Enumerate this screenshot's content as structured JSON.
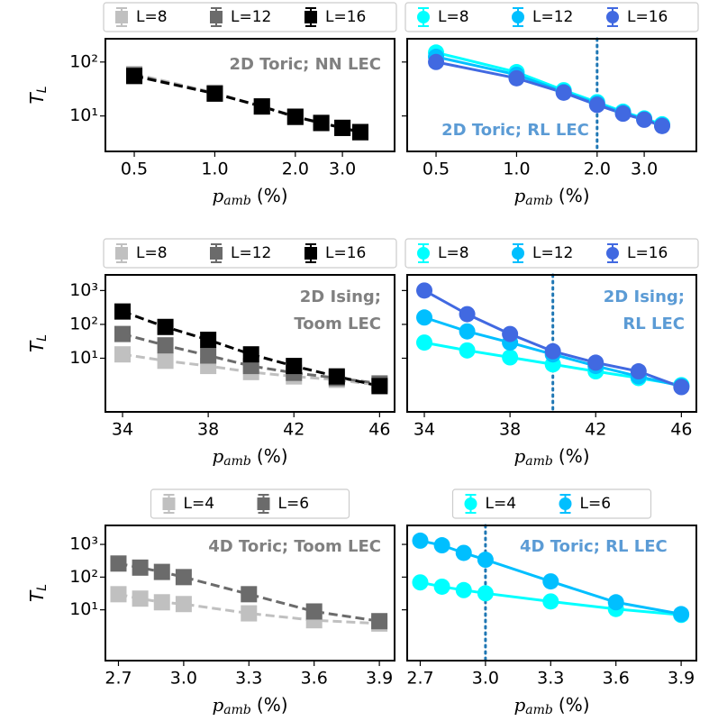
{
  "chart_data": [
    {
      "type": "line",
      "annotation": [
        "2D Toric; NN LEC"
      ],
      "annotation_color": "#808080",
      "x_label": {
        "symbol": "p",
        "subscript": "amb",
        "unit": "(%)"
      },
      "y_label": {
        "symbol": "T",
        "subscript": "L"
      },
      "x": [
        0.5,
        1,
        1.5,
        2,
        2.5,
        3,
        3.5
      ],
      "xscale": "log",
      "xlim": [
        0.39,
        4.7
      ],
      "xticks": [
        0.5,
        {
          "value": 1,
          "label": "1.0"
        },
        {
          "value": 2,
          "label": "2.0"
        },
        {
          "value": 3,
          "label": "3.0"
        }
      ],
      "yscale": "log",
      "ylim": [
        2.2,
        270
      ],
      "yticks": [
        {
          "value": 10,
          "label": "10¹"
        },
        {
          "value": 100,
          "label": "10²"
        }
      ],
      "marker": "square",
      "line_style": "dashed",
      "legend": "top",
      "series": [
        {
          "name": "L=8",
          "color": "#c0c0c0",
          "values": [
            60,
            27,
            15,
            9.8,
            7.5,
            6.1,
            5.1
          ]
        },
        {
          "name": "L=12",
          "color": "#6b6b6b",
          "values": [
            57,
            26,
            15,
            9.7,
            7.4,
            6,
            5
          ]
        },
        {
          "name": "L=16",
          "color": "#000000",
          "values": [
            55,
            26,
            15,
            9.6,
            7.4,
            6,
            5
          ]
        }
      ]
    },
    {
      "type": "line",
      "annotation": [
        "2D Toric; RL LEC"
      ],
      "annotation_color": "#5b9bd5",
      "x_label": {
        "symbol": "p",
        "subscript": "amb",
        "unit": "(%)"
      },
      "x": [
        0.5,
        1,
        1.5,
        2,
        2.5,
        3,
        3.5
      ],
      "xscale": "log",
      "xlim": [
        0.39,
        4.7
      ],
      "xticks": [
        0.5,
        {
          "value": 1,
          "label": "1.0"
        },
        {
          "value": 2,
          "label": "2.0"
        },
        {
          "value": 3,
          "label": "3.0"
        }
      ],
      "yscale": "log",
      "ylim": [
        2.2,
        270
      ],
      "yticks": [
        10,
        100
      ],
      "vline": 2,
      "vline_color": "#1f77b4",
      "marker": "circle",
      "line_style": "solid",
      "legend": "top",
      "series": [
        {
          "name": "L=8",
          "color": "#00ffff",
          "values": [
            150,
            65,
            30,
            18,
            12,
            9,
            7
          ]
        },
        {
          "name": "L=12",
          "color": "#00bfff",
          "values": [
            125,
            58,
            28,
            17,
            11.5,
            8.7,
            6.7
          ]
        },
        {
          "name": "L=16",
          "color": "#4169e1",
          "values": [
            100,
            50,
            27,
            16,
            11,
            8.5,
            6.5
          ]
        }
      ]
    },
    {
      "type": "line",
      "annotation": [
        "2D Ising;",
        "Toom LEC"
      ],
      "annotation_color": "#808080",
      "x_label": {
        "symbol": "p",
        "subscript": "amb",
        "unit": "(%)"
      },
      "y_label": {
        "symbol": "T",
        "subscript": "L"
      },
      "x": [
        34,
        36,
        38,
        40,
        42,
        44,
        46
      ],
      "xscale": "linear",
      "xlim": [
        33.2,
        46.7
      ],
      "xticks": [
        34,
        38,
        42,
        46
      ],
      "yscale": "log",
      "ylim": [
        0.26,
        2900
      ],
      "yticks": [
        {
          "value": 10,
          "label": "10¹"
        },
        {
          "value": 100,
          "label": "10²"
        },
        {
          "value": 1000,
          "label": "10³"
        }
      ],
      "marker": "square",
      "line_style": "dashed",
      "legend": "top",
      "series": [
        {
          "name": "L=8",
          "color": "#c0c0c0",
          "values": [
            13,
            8.4,
            5.9,
            3.9,
            2.9,
            2.3,
            1.6
          ]
        },
        {
          "name": "L=12",
          "color": "#6b6b6b",
          "values": [
            52,
            24,
            12,
            5.9,
            3.7,
            2.6,
            1.8
          ]
        },
        {
          "name": "L=16",
          "color": "#000000",
          "values": [
            240,
            84,
            35,
            13,
            5.9,
            2.9,
            1.5
          ]
        }
      ]
    },
    {
      "type": "line",
      "annotation": [
        "2D Ising;",
        "RL LEC"
      ],
      "annotation_color": "#5b9bd5",
      "x_label": {
        "symbol": "p",
        "subscript": "amb",
        "unit": "(%)"
      },
      "x": [
        34,
        36,
        38,
        40,
        42,
        44,
        46
      ],
      "xscale": "linear",
      "xlim": [
        33.2,
        46.7
      ],
      "xticks": [
        34,
        38,
        42,
        46
      ],
      "yscale": "log",
      "ylim": [
        0.26,
        2900
      ],
      "yticks": [
        10,
        100,
        1000
      ],
      "vline": 40,
      "vline_color": "#1f77b4",
      "marker": "circle",
      "line_style": "solid",
      "legend": "top",
      "series": [
        {
          "name": "L=8",
          "color": "#00ffff",
          "values": [
            29,
            17,
            10.6,
            6.6,
            4.1,
            2.6,
            1.6
          ]
        },
        {
          "name": "L=12",
          "color": "#00bfff",
          "values": [
            160,
            62,
            29,
            13,
            5.9,
            2.9,
            1.5
          ]
        },
        {
          "name": "L=16",
          "color": "#4169e1",
          "values": [
            1000,
            200,
            52,
            16,
            7.4,
            4.1,
            1.4
          ]
        }
      ]
    },
    {
      "type": "line",
      "annotation": [
        "4D Toric; Toom LEC"
      ],
      "annotation_color": "#808080",
      "x_label": {
        "symbol": "p",
        "subscript": "amb",
        "unit": "(%)"
      },
      "y_label": {
        "symbol": "T",
        "subscript": "L"
      },
      "x": [
        2.7,
        2.8,
        2.9,
        3,
        3.3,
        3.6,
        3.9
      ],
      "xscale": "linear",
      "xlim": [
        2.64,
        3.97
      ],
      "xticks": [
        2.7,
        {
          "value": 3,
          "label": "3.0"
        },
        3.3,
        3.6,
        3.9
      ],
      "yscale": "log",
      "ylim": [
        0.28,
        3800
      ],
      "yticks": [
        {
          "value": 10,
          "label": "10¹"
        },
        {
          "value": 100,
          "label": "10²"
        },
        {
          "value": 1000,
          "label": "10³"
        }
      ],
      "marker": "square",
      "line_style": "dashed",
      "legend": "top",
      "series": [
        {
          "name": "L=4",
          "color": "#c0c0c0",
          "values": [
            30,
            22,
            17,
            15,
            7.8,
            4.8,
            3.8
          ]
        },
        {
          "name": "L=6",
          "color": "#6b6b6b",
          "values": [
            260,
            195,
            144,
            100,
            30,
            8.9,
            4.5
          ]
        }
      ]
    },
    {
      "type": "line",
      "annotation": [
        "4D Toric; RL LEC"
      ],
      "annotation_color": "#5b9bd5",
      "x_label": {
        "symbol": "p",
        "subscript": "amb",
        "unit": "(%)"
      },
      "x": [
        2.7,
        2.8,
        2.9,
        3,
        3.3,
        3.6,
        3.9
      ],
      "xscale": "linear",
      "xlim": [
        2.64,
        3.97
      ],
      "xticks": [
        2.7,
        {
          "value": 3,
          "label": "3.0"
        },
        3.3,
        3.6,
        3.9
      ],
      "yscale": "log",
      "ylim": [
        0.28,
        3800
      ],
      "yticks": [
        10,
        100,
        1000
      ],
      "vline": 3,
      "vline_color": "#1f77b4",
      "marker": "circle",
      "line_style": "solid",
      "legend": "top",
      "series": [
        {
          "name": "L=4",
          "color": "#00ffff",
          "values": [
            69,
            51,
            40,
            32,
            18,
            10.6,
            7
          ]
        },
        {
          "name": "L=6",
          "color": "#00bfff",
          "values": [
            1300,
            940,
            550,
            340,
            74,
            17,
            7.4
          ]
        }
      ]
    }
  ]
}
